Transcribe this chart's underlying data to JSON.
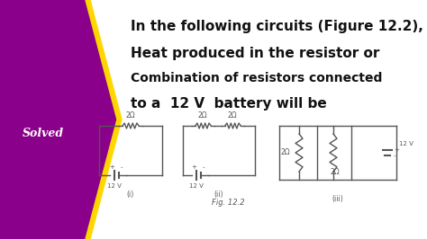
{
  "bg_purple": "#8B008B",
  "bg_yellow": "#FFD700",
  "bg_white": "#FFFFFF",
  "bg_dark": "#1a1a1a",
  "title_lines": [
    "In the following circuits (Figure 12.2),",
    "Heat produced in the resistor or",
    "Combination of resistors connected",
    "to a  12 V  battery will be"
  ],
  "solved_text": "Solved",
  "fig_label": "Fig. 12.2",
  "circuit_color": "#555555",
  "text_color": "#111111"
}
